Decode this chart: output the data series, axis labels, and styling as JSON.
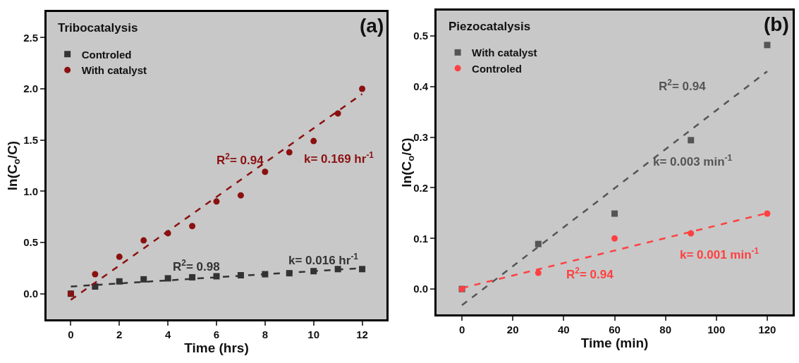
{
  "chart_data": [
    {
      "type": "scatter",
      "title": "Tribocatalysis",
      "xlabel": "Time (hrs)",
      "ylabel": "ln(C$_{o}$/C)",
      "xlim": [
        -1,
        13
      ],
      "xticks": [
        0,
        2,
        4,
        6,
        8,
        10,
        12
      ],
      "ylim": [
        -0.25,
        2.75
      ],
      "yticks": [
        {
          "value": 0,
          "label": "0.0"
        },
        0.5,
        {
          "value": 1,
          "label": "1.0"
        },
        1.5,
        {
          "value": 2,
          "label": "2.0"
        },
        2.5
      ],
      "grid": false,
      "legend": "top left",
      "series": [
        {
          "type": "scatter",
          "name": "Controled",
          "color": "#333333",
          "marker": "square",
          "x": [
            0,
            1,
            2,
            3,
            4,
            5,
            6,
            7,
            8,
            9,
            10,
            11,
            12
          ],
          "values": [
            0,
            0.07,
            0.12,
            0.14,
            0.15,
            0.16,
            0.17,
            0.18,
            0.19,
            0.2,
            0.22,
            0.24,
            0.24
          ]
        },
        {
          "type": "scatter",
          "name": "With catalyst",
          "color": "#8b1010",
          "marker": "circle",
          "x": [
            0,
            1,
            2,
            3,
            4,
            5,
            6,
            7,
            8,
            9,
            10,
            11,
            12
          ],
          "values": [
            0,
            0.19,
            0.36,
            0.52,
            0.59,
            0.66,
            0.9,
            0.96,
            1.19,
            1.38,
            1.49,
            1.76,
            2.0
          ]
        },
        {
          "type": "line",
          "color": "#8b1010",
          "line_style": "dashed",
          "marker": "none",
          "x": [
            0,
            12
          ],
          "values": [
            -0.06,
            1.95
          ]
        },
        {
          "type": "line",
          "color": "#333333",
          "line_style": "dashed",
          "marker": "none",
          "x": [
            0,
            12
          ],
          "values": [
            0.07,
            0.25
          ]
        }
      ],
      "annotations": [
        "(a)",
        "R$^{2}$= 0.94",
        "k= 0.169 hr$^{-1}$",
        "R$^{2}$= 0.98",
        "k= 0.016 hr$^{-1}$"
      ]
    },
    {
      "type": "scatter",
      "title": "Piezocatalysis",
      "xlabel": "Time (min)",
      "ylabel": "ln(C$_{o}$/C)",
      "xlim": [
        -10,
        130
      ],
      "xticks": [
        0,
        20,
        40,
        60,
        80,
        100,
        120
      ],
      "ylim": [
        -0.05,
        0.55
      ],
      "yticks": [
        {
          "value": 0,
          "label": "0.0"
        },
        0.1,
        0.2,
        0.3,
        0.4,
        0.5
      ],
      "grid": false,
      "legend": "top left",
      "series": [
        {
          "type": "scatter",
          "name": "With catalyst",
          "color": "#555555",
          "marker": "square",
          "x": [
            0,
            30,
            60,
            90,
            120
          ],
          "values": [
            0,
            0.089,
            0.149,
            0.294,
            0.482
          ]
        },
        {
          "type": "scatter",
          "name": "Controled",
          "color": "#ff4040",
          "marker": "circle",
          "x": [
            0,
            30,
            60,
            90,
            120
          ],
          "values": [
            0,
            0.032,
            0.1,
            0.11,
            0.149
          ]
        },
        {
          "type": "line",
          "color": "#555555",
          "line_style": "dashed",
          "marker": "none",
          "x": [
            0,
            120
          ],
          "values": [
            -0.032,
            0.43
          ]
        },
        {
          "type": "line",
          "color": "#ff4040",
          "line_style": "dashed",
          "marker": "none",
          "x": [
            0,
            120
          ],
          "values": [
            0.002,
            0.15
          ]
        }
      ],
      "annotations": [
        "(b)",
        "R$^{2}$= 0.94",
        "k= 0.003 min$^{-1}$",
        "k= 0.001 min$^{-1}$",
        "R$^{2}$= 0.94"
      ]
    }
  ]
}
